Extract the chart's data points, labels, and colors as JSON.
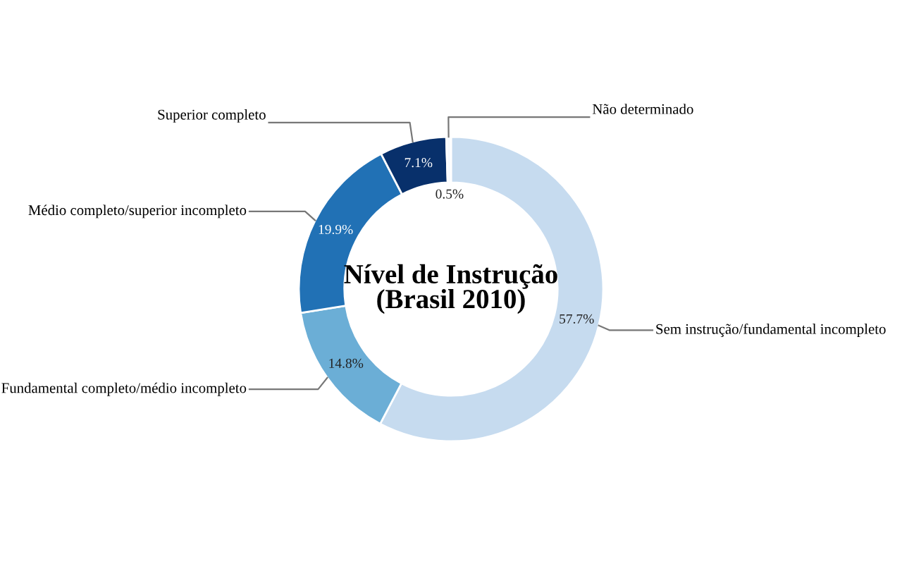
{
  "chart_data": {
    "type": "donut",
    "title": "Nível de Instrução\n(Brasil 2010)",
    "categories": [
      "Sem instrução/fundamental incompleto",
      "Fundamental completo/médio incompleto",
      "Médio completo/superior incompleto",
      "Superior completo",
      "Não determinado"
    ],
    "values": [
      57.7,
      14.8,
      19.9,
      7.1,
      0.5
    ],
    "colors": [
      "#c6dbef",
      "#6baed6",
      "#2171b5",
      "#08306b",
      "#f7fbff"
    ],
    "value_labels": [
      "57.7%",
      "14.8%",
      "19.9%",
      "7.1%",
      "0.5%"
    ],
    "legend": false
  }
}
